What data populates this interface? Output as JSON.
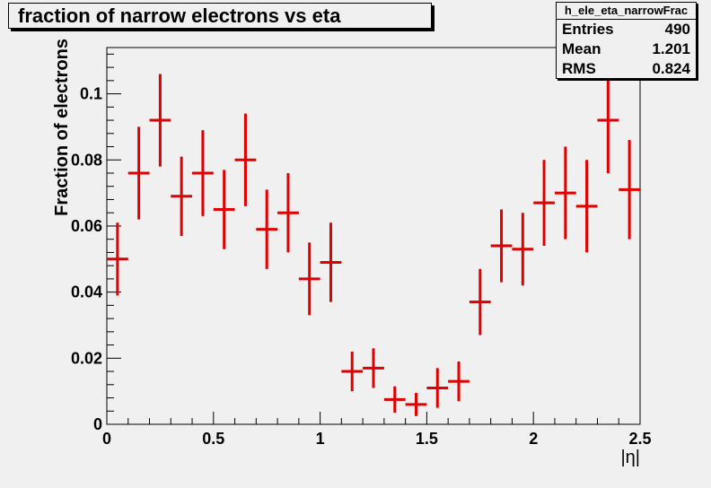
{
  "title": "fraction of narrow electrons vs eta",
  "stats": {
    "name": "h_ele_eta_narrowFrac",
    "rows": [
      {
        "label": "Entries",
        "value": "490"
      },
      {
        "label": "Mean",
        "value": "1.201"
      },
      {
        "label": "RMS",
        "value": "0.824"
      }
    ]
  },
  "colors": {
    "marker": "#e00000",
    "frame_bg": "#f0f0f0",
    "axis": "#000000"
  },
  "chart_data": {
    "type": "scatter",
    "title": "fraction of narrow electrons vs eta",
    "xlabel": "|η|",
    "ylabel": "Fraction of electrons",
    "xlim": [
      0,
      2.5
    ],
    "ylim": [
      0,
      0.114
    ],
    "x_ticks": [
      0,
      0.5,
      1,
      1.5,
      2,
      2.5
    ],
    "x_tick_labels": [
      "0",
      "0.5",
      "1",
      "1.5",
      "2",
      "2.5"
    ],
    "y_ticks": [
      0,
      0.02,
      0.04,
      0.06,
      0.08,
      0.1
    ],
    "y_tick_labels": [
      "0",
      "0.02",
      "0.04",
      "0.06",
      "0.08",
      "0.1"
    ],
    "bin_width": 0.1,
    "x": [
      0.05,
      0.15,
      0.25,
      0.35,
      0.45,
      0.55,
      0.65,
      0.75,
      0.85,
      0.95,
      1.05,
      1.15,
      1.25,
      1.35,
      1.45,
      1.55,
      1.65,
      1.75,
      1.85,
      1.95,
      2.05,
      2.15,
      2.25,
      2.35,
      2.45
    ],
    "y": [
      0.05,
      0.076,
      0.092,
      0.069,
      0.076,
      0.065,
      0.08,
      0.059,
      0.064,
      0.044,
      0.049,
      0.016,
      0.017,
      0.0075,
      0.006,
      0.011,
      0.013,
      0.037,
      0.054,
      0.053,
      0.067,
      0.07,
      0.066,
      0.092,
      0.071
    ],
    "yerr": [
      0.011,
      0.014,
      0.014,
      0.012,
      0.013,
      0.012,
      0.014,
      0.012,
      0.012,
      0.011,
      0.012,
      0.006,
      0.006,
      0.004,
      0.0035,
      0.006,
      0.006,
      0.01,
      0.011,
      0.011,
      0.013,
      0.014,
      0.014,
      0.016,
      0.015
    ],
    "grid": false,
    "legend": "none"
  }
}
